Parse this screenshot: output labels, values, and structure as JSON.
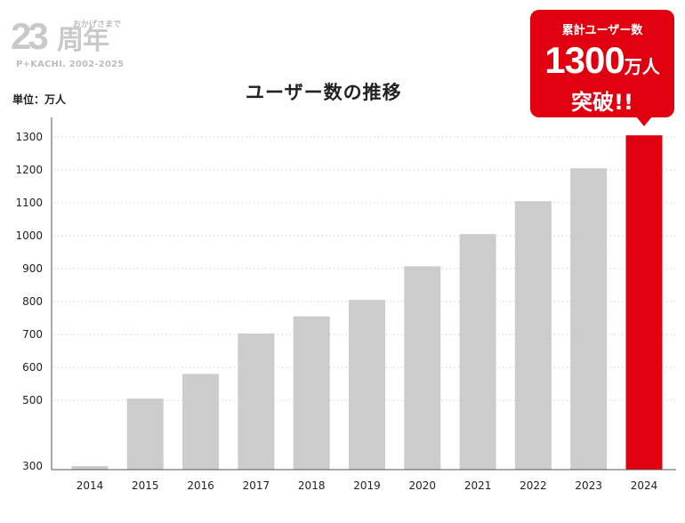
{
  "logo": {
    "number": "23",
    "kanji": "周年",
    "tagline": "おかげさまで",
    "brand": "P+KACHI. 2002-2025"
  },
  "unit_label": "単位：万人",
  "callout": {
    "line1": "累計ユーザー数",
    "number": "1300",
    "unit": "万人",
    "line3": "突破!!"
  },
  "colors": {
    "bar": "#cccccc",
    "highlight": "#e1000f",
    "grid": "#cfcfcf",
    "axis": "#555555"
  },
  "chart_data": {
    "type": "bar",
    "title": "ユーザー数の推移",
    "categories": [
      "2014",
      "2015",
      "2016",
      "2017",
      "2018",
      "2019",
      "2020",
      "2021",
      "2022",
      "2023",
      "2024"
    ],
    "values": [
      300,
      505,
      580,
      703,
      755,
      805,
      907,
      1005,
      1105,
      1205,
      1305
    ],
    "highlight_category": "2024",
    "yticks": [
      "300",
      "500",
      "600",
      "700",
      "800",
      "900",
      "1000",
      "1100",
      "1200",
      "1300"
    ],
    "ylim": [
      280,
      1300
    ],
    "grid": "dotted horizontal"
  }
}
